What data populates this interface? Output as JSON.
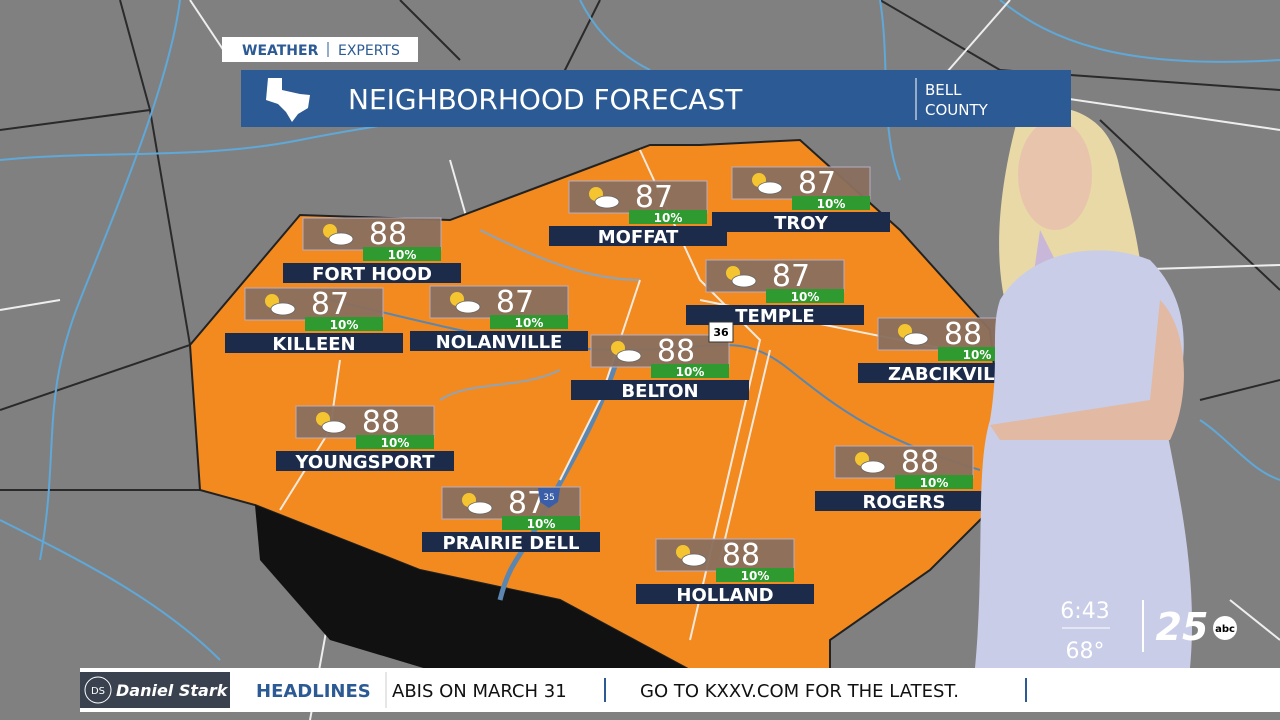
{
  "header": {
    "brand_left": "WEATHER",
    "brand_right": "EXPERTS",
    "title": "NEIGHBORHOOD FORECAST",
    "region_line1": "BELL",
    "region_line2": "COUNTY"
  },
  "locations": [
    {
      "name": "FORT HOOD",
      "temp": "88",
      "precip": "10%"
    },
    {
      "name": "MOFFAT",
      "temp": "87",
      "precip": "10%"
    },
    {
      "name": "TROY",
      "temp": "87",
      "precip": "10%"
    },
    {
      "name": "KILLEEN",
      "temp": "87",
      "precip": "10%"
    },
    {
      "name": "NOLANVILLE",
      "temp": "87",
      "precip": "10%"
    },
    {
      "name": "TEMPLE",
      "temp": "87",
      "precip": "10%"
    },
    {
      "name": "BELTON",
      "temp": "88",
      "precip": "10%"
    },
    {
      "name": "ZABCIKVILL",
      "temp": "88",
      "precip": "10%"
    },
    {
      "name": "YOUNGSPORT",
      "temp": "88",
      "precip": "10%"
    },
    {
      "name": "ROGERS",
      "temp": "88",
      "precip": "10%"
    },
    {
      "name": "PRAIRIE DELL",
      "temp": "87",
      "precip": "10%"
    },
    {
      "name": "HOLLAND",
      "temp": "88",
      "precip": "10%"
    }
  ],
  "road_shields": [
    "36",
    "35"
  ],
  "status": {
    "time": "6:43",
    "temperature": "68°",
    "station_number": "25",
    "network": "abc"
  },
  "ticker": {
    "sponsor_initials": "DS",
    "sponsor": "Daniel Stark",
    "section": "HEADLINES",
    "items": [
      "ABIS ON MARCH 31",
      "GO TO KXXV.COM FOR THE LATEST."
    ]
  }
}
